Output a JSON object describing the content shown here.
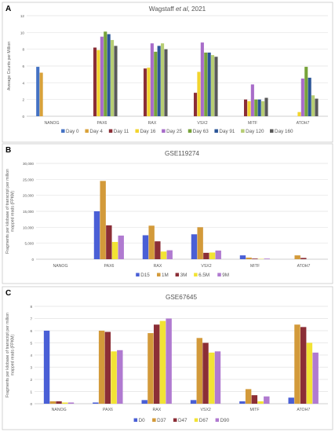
{
  "figure": {
    "panels": [
      {
        "label": "A",
        "title": "Wagstaff et al, 2021",
        "title_prefix": "Wagstaff ",
        "title_italic": "et al",
        "title_suffix": ", 2021"
      },
      {
        "label": "B",
        "title": "GSE119274"
      },
      {
        "label": "C",
        "title": "GSE67645"
      }
    ]
  },
  "chart_data": [
    {
      "type": "bar",
      "title": "Wagstaff et al, 2021",
      "xlabel": "",
      "ylabel": "Average Counts per Million",
      "ylim": [
        0,
        12
      ],
      "yticks": [
        0,
        2,
        4,
        6,
        8,
        10,
        12
      ],
      "ytick_labels": [
        "0",
        "2",
        "4",
        "6",
        "8",
        "10",
        "12"
      ],
      "grid": true,
      "legend_position": "bottom",
      "categories": [
        "NANOG",
        "PAX6",
        "RAX",
        "VSX2",
        "MITF",
        "ATOH7"
      ],
      "series": [
        {
          "name": "Day 0",
          "color": "#4472c4",
          "values": [
            5.9,
            0,
            0,
            0,
            0,
            0
          ]
        },
        {
          "name": "Day 4",
          "color": "#d9a23a",
          "values": [
            5.2,
            0,
            0,
            0,
            0,
            0
          ]
        },
        {
          "name": "Day 11",
          "color": "#8b2e36",
          "values": [
            0,
            8.2,
            5.7,
            2.8,
            2.0,
            0
          ]
        },
        {
          "name": "Day 16",
          "color": "#f2d42e",
          "values": [
            0,
            7.9,
            5.8,
            5.3,
            1.8,
            0.5
          ]
        },
        {
          "name": "Day 25",
          "color": "#a86cc9",
          "values": [
            0,
            9.5,
            8.7,
            8.8,
            3.8,
            4.5
          ]
        },
        {
          "name": "Day 63",
          "color": "#77a33a",
          "values": [
            0,
            10.1,
            7.7,
            7.6,
            2.0,
            5.9
          ]
        },
        {
          "name": "Day 91",
          "color": "#2b5597",
          "values": [
            0,
            9.8,
            8.4,
            7.6,
            2.0,
            4.6
          ]
        },
        {
          "name": "Day 120",
          "color": "#b6cd73",
          "values": [
            0,
            9.1,
            8.7,
            7.3,
            1.8,
            2.5
          ]
        },
        {
          "name": "Day 160",
          "color": "#595959",
          "values": [
            0,
            8.4,
            8.0,
            7.1,
            2.2,
            2.1
          ]
        }
      ]
    },
    {
      "type": "bar",
      "title": "GSE119274",
      "xlabel": "",
      "ylabel": "Fragments per kilobase of transcript per million mapped reads (FPKM)",
      "ylim": [
        0,
        30000
      ],
      "yticks": [
        0,
        5000,
        10000,
        15000,
        20000,
        25000,
        30000
      ],
      "ytick_labels": [
        "0",
        "5,000",
        "10,000",
        "15,000",
        "20,000",
        "25,000",
        "30,000"
      ],
      "grid": true,
      "legend_position": "bottom",
      "categories": [
        "NANOG",
        "PAX6",
        "RAX",
        "VSX2",
        "MITF",
        "ATOH7"
      ],
      "series": [
        {
          "name": "D15",
          "color": "#4a5fd6",
          "values": [
            0,
            15000,
            7500,
            7800,
            1200,
            0
          ]
        },
        {
          "name": "1M",
          "color": "#d39a3a",
          "values": [
            0,
            24500,
            10500,
            10000,
            500,
            1200
          ]
        },
        {
          "name": "3M",
          "color": "#8b2e36",
          "values": [
            0,
            10600,
            5600,
            2000,
            200,
            400
          ]
        },
        {
          "name": "6.5M",
          "color": "#f2e334",
          "values": [
            0,
            5400,
            2400,
            2100,
            100,
            0
          ]
        },
        {
          "name": "9M",
          "color": "#b07ad0",
          "values": [
            0,
            7400,
            2800,
            2700,
            200,
            0
          ]
        }
      ]
    },
    {
      "type": "bar",
      "title": "GSE67645",
      "xlabel": "",
      "ylabel": "Fragments per kilobase of transcript per million mapped reads (FPKM)",
      "ylim": [
        0,
        8
      ],
      "yticks": [
        0,
        1,
        2,
        3,
        4,
        5,
        6,
        7,
        8
      ],
      "ytick_labels": [
        "0",
        "1",
        "2",
        "3",
        "4",
        "5",
        "6",
        "7",
        "8"
      ],
      "grid": true,
      "legend_position": "bottom",
      "categories": [
        "NANOG",
        "PAX6",
        "RAX",
        "VSX2",
        "MITF",
        "ATOH7"
      ],
      "series": [
        {
          "name": "D0",
          "color": "#4a5fd6",
          "values": [
            6.0,
            0.1,
            0.3,
            0.3,
            0.2,
            0.5
          ]
        },
        {
          "name": "D37",
          "color": "#d39a3a",
          "values": [
            0.2,
            6.0,
            5.8,
            5.4,
            1.2,
            6.5
          ]
        },
        {
          "name": "D47",
          "color": "#8b2e36",
          "values": [
            0.2,
            5.9,
            6.5,
            5.0,
            0.7,
            6.3
          ]
        },
        {
          "name": "D67",
          "color": "#f2e334",
          "values": [
            0.1,
            4.3,
            6.8,
            4.2,
            0.2,
            5.0
          ]
        },
        {
          "name": "D90",
          "color": "#b07ad0",
          "values": [
            0.1,
            4.4,
            7.0,
            4.3,
            0.6,
            4.2
          ]
        }
      ]
    }
  ]
}
